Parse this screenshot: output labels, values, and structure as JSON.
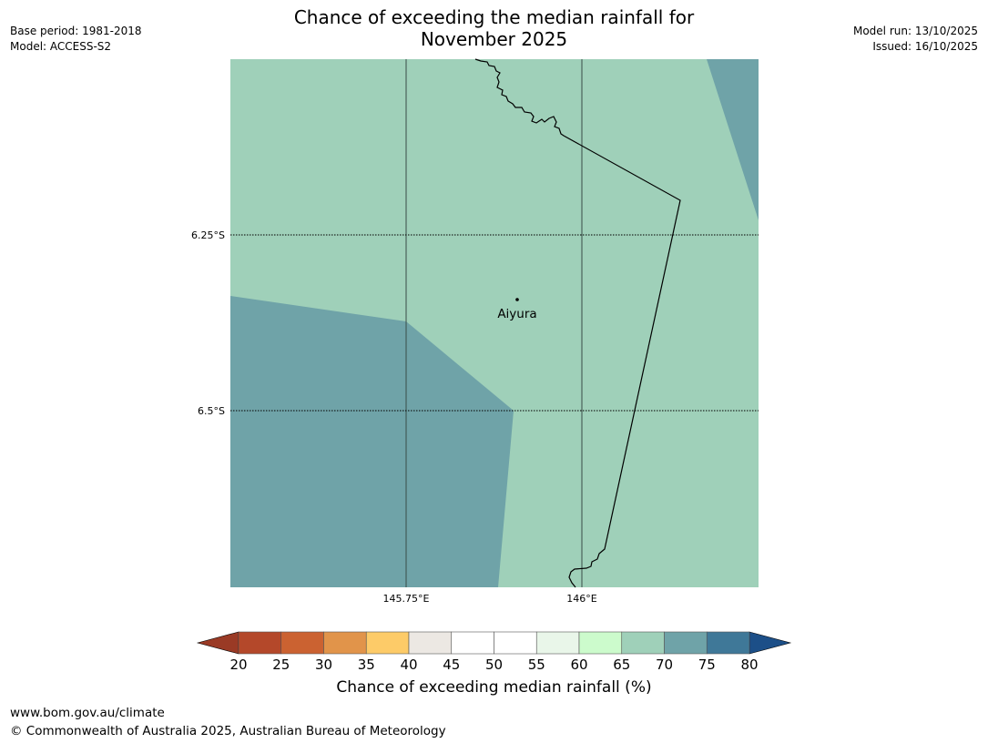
{
  "title": {
    "line1": "Chance of exceeding the median rainfall for",
    "line2": "November 2025"
  },
  "meta_left": {
    "base_period": "Base period: 1981-2018",
    "model": "Model: ACCESS-S2"
  },
  "meta_right": {
    "model_run": "Model run: 13/10/2025",
    "issued": "Issued: 16/10/2025"
  },
  "map": {
    "lat_labels": [
      "6.25°S",
      "6.5°S"
    ],
    "lon_labels": [
      "145.75°E",
      "146°E"
    ],
    "place_name": "Aiyura"
  },
  "colorbar": {
    "label": "Chance of exceeding median rainfall (%)",
    "ticks": [
      "20",
      "25",
      "30",
      "35",
      "40",
      "45",
      "50",
      "55",
      "60",
      "65",
      "70",
      "75",
      "80"
    ],
    "low_color": "#9a3a25",
    "high_color": "#1c4f88",
    "colors": [
      "#b4482a",
      "#cb6231",
      "#e1944a",
      "#fdcb68",
      "#ece8e3",
      "#ffffff",
      "#ffffff",
      "#e9f6e9",
      "#ccfbcc",
      "#9fd0b9",
      "#6fa3a8",
      "#3f7898"
    ]
  },
  "footer": {
    "url": "www.bom.gov.au/climate",
    "copyright": "© Commonwealth of Australia 2025, Australian Bureau of Meteorology"
  }
}
